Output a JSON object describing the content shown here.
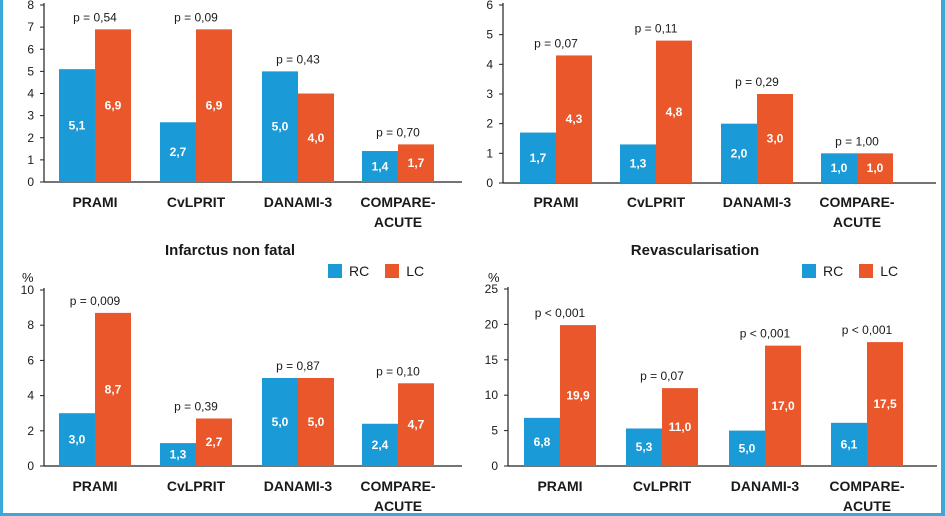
{
  "colors": {
    "rc": "#1a9ad6",
    "lc": "#e9572b",
    "axis": "#222222",
    "frame": "#3aa9d9"
  },
  "legend": {
    "rc": "RC",
    "lc": "LC"
  },
  "chart_data": [
    {
      "type": "bar",
      "title": "",
      "ylabel": "",
      "ylim": [
        0,
        8
      ],
      "yticks": [
        0,
        1,
        2,
        3,
        4,
        5,
        6,
        7,
        8
      ],
      "categories": [
        [
          "PRAMI"
        ],
        [
          "CvLPRIT"
        ],
        [
          "DANAMI-3"
        ],
        [
          "COMPARE-",
          "ACUTE"
        ]
      ],
      "series": [
        {
          "name": "RC",
          "values": [
            5.1,
            2.7,
            5.0,
            1.4
          ],
          "labels": [
            "5,1",
            "2,7",
            "5,0",
            "1,4"
          ]
        },
        {
          "name": "LC",
          "values": [
            6.9,
            6.9,
            4.0,
            1.7
          ],
          "labels": [
            "6,9",
            "6,9",
            "4,0",
            "1,7"
          ]
        }
      ],
      "pvalues": [
        "p = 0,54",
        "p = 0,09",
        "p = 0,43",
        "p = 0,70"
      ]
    },
    {
      "type": "bar",
      "title": "",
      "ylabel": "",
      "ylim": [
        0,
        6
      ],
      "yticks": [
        0,
        1,
        2,
        3,
        4,
        5,
        6
      ],
      "categories": [
        [
          "PRAMI"
        ],
        [
          "CvLPRIT"
        ],
        [
          "DANAMI-3"
        ],
        [
          "COMPARE-",
          "ACUTE"
        ]
      ],
      "series": [
        {
          "name": "RC",
          "values": [
            1.7,
            1.3,
            2.0,
            1.0
          ],
          "labels": [
            "1,7",
            "1,3",
            "2,0",
            "1,0"
          ]
        },
        {
          "name": "LC",
          "values": [
            4.3,
            4.8,
            3.0,
            1.0
          ],
          "labels": [
            "4,3",
            "4,8",
            "3,0",
            "1,0"
          ]
        }
      ],
      "pvalues": [
        "p = 0,07",
        "p = 0,11",
        "p = 0,29",
        "p = 1,00"
      ]
    },
    {
      "type": "bar",
      "title": "Infarctus non fatal",
      "ylabel": "%",
      "ylim": [
        0,
        10
      ],
      "yticks": [
        0,
        2,
        4,
        6,
        8,
        10
      ],
      "categories": [
        [
          "PRAMI"
        ],
        [
          "CvLPRIT"
        ],
        [
          "DANAMI-3"
        ],
        [
          "COMPARE-",
          "ACUTE"
        ]
      ],
      "series": [
        {
          "name": "RC",
          "values": [
            3.0,
            1.3,
            5.0,
            2.4
          ],
          "labels": [
            "3,0",
            "1,3",
            "5,0",
            "2,4"
          ]
        },
        {
          "name": "LC",
          "values": [
            8.7,
            2.7,
            5.0,
            4.7
          ],
          "labels": [
            "8,7",
            "2,7",
            "5,0",
            "4,7"
          ]
        }
      ],
      "pvalues": [
        "p = 0,009",
        "p = 0,39",
        "p = 0,87",
        "p = 0,10"
      ]
    },
    {
      "type": "bar",
      "title": "Revascularisation",
      "ylabel": "%",
      "ylim": [
        0,
        25
      ],
      "yticks": [
        0,
        5,
        10,
        15,
        20,
        25
      ],
      "categories": [
        [
          "PRAMI"
        ],
        [
          "CvLPRIT"
        ],
        [
          "DANAMI-3"
        ],
        [
          "COMPARE-",
          "ACUTE"
        ]
      ],
      "series": [
        {
          "name": "RC",
          "values": [
            6.8,
            5.3,
            5.0,
            6.1
          ],
          "labels": [
            "6,8",
            "5,3",
            "5,0",
            "6,1"
          ]
        },
        {
          "name": "LC",
          "values": [
            19.9,
            11.0,
            17.0,
            17.5
          ],
          "labels": [
            "19,9",
            "11,0",
            "17,0",
            "17,5"
          ]
        }
      ],
      "pvalues": [
        "p < 0,001",
        "p = 0,07",
        "p < 0,001",
        "p < 0,001"
      ]
    }
  ]
}
